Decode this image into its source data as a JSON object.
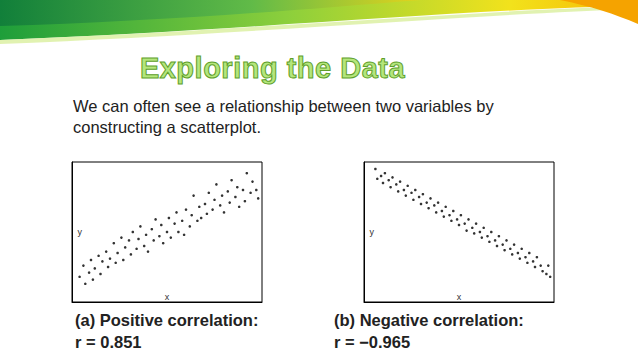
{
  "slide": {
    "title": "Exploring the Data",
    "text": "We can often see a relationship between two variables by constructing a scatterplot."
  },
  "chart_data": [
    {
      "type": "scatter",
      "caption": [
        "(a) Positive correlation:",
        "r = 0.851"
      ],
      "x_label": "x",
      "y_label": "y",
      "xlim": [
        0,
        10
      ],
      "ylim": [
        0,
        10
      ],
      "tick_labels": false,
      "grid": false,
      "color": "#000000",
      "marker": "circle",
      "x": [
        0.4,
        0.6,
        0.7,
        0.9,
        1.0,
        1.1,
        1.2,
        1.4,
        1.5,
        1.6,
        1.8,
        1.9,
        2.0,
        2.2,
        2.3,
        2.4,
        2.6,
        2.7,
        2.8,
        3.0,
        3.1,
        3.2,
        3.4,
        3.5,
        3.6,
        3.8,
        3.9,
        4.0,
        4.2,
        4.3,
        4.4,
        4.6,
        4.7,
        4.8,
        5.0,
        5.1,
        5.2,
        5.4,
        5.5,
        5.6,
        5.8,
        5.9,
        6.0,
        6.2,
        6.3,
        6.4,
        6.6,
        6.7,
        6.8,
        7.0,
        7.1,
        7.2,
        7.4,
        7.5,
        7.6,
        7.8,
        7.9,
        8.0,
        8.2,
        8.3,
        8.4,
        8.6,
        8.7,
        8.8,
        9.0,
        9.1,
        9.2,
        9.4,
        9.5,
        9.7,
        9.8
      ],
      "values": [
        1.8,
        2.6,
        1.3,
        2.1,
        3.0,
        1.6,
        2.4,
        3.3,
        2.0,
        2.9,
        3.6,
        2.5,
        3.1,
        4.2,
        2.8,
        3.5,
        4.6,
        3.0,
        3.9,
        4.4,
        3.4,
        5.0,
        3.8,
        4.5,
        5.4,
        4.0,
        4.8,
        3.6,
        5.2,
        4.4,
        5.9,
        4.7,
        5.5,
        4.2,
        5.0,
        6.0,
        4.6,
        5.6,
        6.4,
        5.0,
        5.8,
        4.8,
        6.6,
        5.4,
        6.2,
        7.6,
        5.8,
        6.8,
        6.0,
        7.0,
        6.3,
        7.8,
        6.6,
        7.3,
        8.4,
        6.9,
        7.6,
        6.4,
        7.9,
        7.1,
        8.7,
        7.5,
        8.2,
        6.8,
        8.0,
        7.2,
        9.2,
        7.8,
        8.6,
        8.0,
        7.4
      ]
    },
    {
      "type": "scatter",
      "caption": [
        "(b) Negative correlation:",
        "r = −0.965"
      ],
      "x_label": "x",
      "y_label": "y",
      "xlim": [
        0,
        10
      ],
      "ylim": [
        0,
        10
      ],
      "tick_labels": false,
      "grid": false,
      "color": "#000000",
      "marker": "circle",
      "x": [
        0.6,
        0.7,
        0.9,
        1.0,
        1.1,
        1.3,
        1.4,
        1.5,
        1.7,
        1.8,
        1.9,
        2.1,
        2.2,
        2.3,
        2.5,
        2.6,
        2.7,
        2.9,
        3.0,
        3.1,
        3.3,
        3.4,
        3.5,
        3.7,
        3.8,
        3.9,
        4.1,
        4.2,
        4.3,
        4.5,
        4.6,
        4.7,
        4.9,
        5.0,
        5.1,
        5.3,
        5.4,
        5.5,
        5.7,
        5.8,
        5.9,
        6.1,
        6.2,
        6.3,
        6.5,
        6.6,
        6.7,
        6.9,
        7.0,
        7.1,
        7.3,
        7.4,
        7.5,
        7.7,
        7.8,
        7.9,
        8.1,
        8.2,
        8.3,
        8.5,
        8.6,
        8.7,
        8.9,
        9.0,
        9.1,
        9.3,
        9.4,
        9.6,
        9.7,
        9.8
      ],
      "values": [
        9.5,
        8.8,
        9.0,
        8.5,
        9.2,
        8.7,
        8.2,
        8.9,
        8.4,
        7.9,
        8.6,
        8.0,
        7.6,
        8.3,
        7.8,
        7.3,
        8.0,
        7.5,
        7.0,
        7.7,
        7.1,
        6.7,
        7.4,
        6.9,
        6.4,
        7.1,
        6.5,
        6.1,
        6.8,
        6.2,
        5.8,
        6.5,
        5.9,
        5.5,
        6.2,
        5.6,
        5.1,
        5.9,
        5.3,
        4.9,
        5.6,
        5.0,
        4.6,
        5.3,
        4.7,
        4.3,
        5.0,
        4.4,
        4.0,
        4.7,
        4.1,
        3.7,
        4.4,
        3.8,
        3.4,
        4.1,
        3.5,
        3.1,
        3.8,
        3.2,
        2.8,
        3.5,
        2.9,
        2.5,
        3.2,
        2.6,
        2.2,
        2.0,
        2.6,
        1.8
      ]
    }
  ]
}
